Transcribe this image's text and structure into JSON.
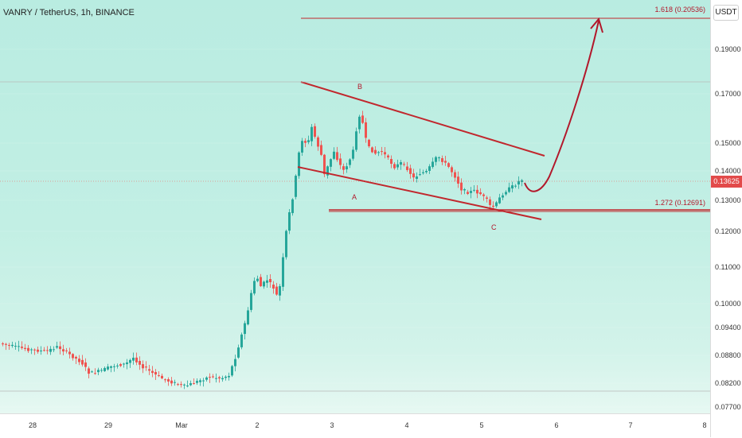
{
  "chart_data": {
    "type": "candlestick",
    "title": "VANRY / TetherUS, 1h, BINANCE",
    "unit_label": "USDT",
    "last_price": "0.13625",
    "y_ticks": [
      "0.19000",
      "0.17000",
      "0.15000",
      "0.14000",
      "0.13000",
      "0.12000",
      "0.11000",
      "0.10000",
      "0.09400",
      "0.08800",
      "0.08200",
      "0.07700"
    ],
    "x_ticks": [
      "28",
      "29",
      "Mar",
      "2",
      "3",
      "4",
      "5",
      "6",
      "7",
      "8"
    ],
    "wave_labels": [
      "A",
      "B",
      "C"
    ],
    "fib_levels": [
      {
        "label": "1.618 (0.20536)",
        "value": 0.20536
      },
      {
        "label": "1.272 (0.12691)",
        "value": 0.12691
      }
    ],
    "colors": {
      "up": "#26a69a",
      "down": "#ef5350",
      "annotation": "#b2182b"
    }
  }
}
